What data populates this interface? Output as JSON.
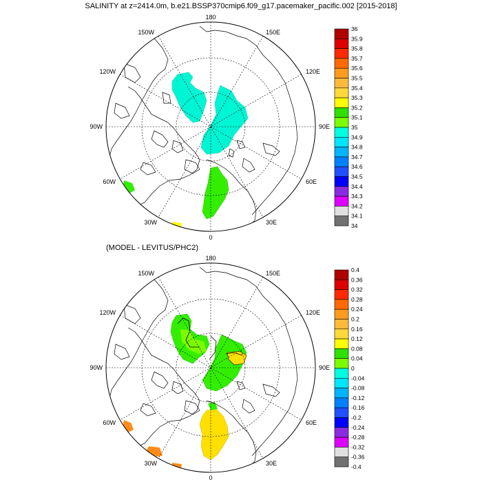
{
  "top_title": "SALINITY at z=2414.0m, b.e21.BSSP370cmip6.f09_g17.pacemaker_pacific.002 [2015-2018]",
  "bottom_title": "(MODEL - LEVITUS/PHC2)",
  "lon_labels": {
    "n180": "180",
    "n150w": "150W",
    "n150e": "150E",
    "n120w": "120W",
    "n120e": "120E",
    "n90w": "90W",
    "n90e": "90E",
    "n60w": "60W",
    "n60e": "60E",
    "n30w": "30W",
    "n30e": "30E",
    "n0": "0"
  },
  "top_colorbar": {
    "labels": [
      "36",
      "35.9",
      "35.8",
      "35.7",
      "35.6",
      "35.5",
      "35.4",
      "35.3",
      "35.2",
      "35.1",
      "35",
      "34.9",
      "34.8",
      "34.7",
      "34.6",
      "34.5",
      "34.4",
      "34.3",
      "34.2",
      "34.1",
      "34"
    ],
    "colors": [
      "#b00000",
      "#dd0000",
      "#ff2a00",
      "#ff6a00",
      "#ff9b1e",
      "#ffba3c",
      "#ffd83a",
      "#ffff00",
      "#2fe000",
      "#7cfc00",
      "#00ffe0",
      "#00e6ff",
      "#00b4ff",
      "#0080ff",
      "#2050ff",
      "#0000ff",
      "#8a2be2",
      "#dd00ff",
      "#e0e0e0",
      "#707070"
    ]
  },
  "bottom_colorbar": {
    "labels": [
      "0.4",
      "0.36",
      "0.32",
      "0.28",
      "0.24",
      "0.2",
      "0.16",
      "0.12",
      "0.08",
      "0.04",
      "0",
      "-0.04",
      "-0.08",
      "-0.12",
      "-0.16",
      "-0.2",
      "-0.24",
      "-0.28",
      "-0.32",
      "-0.36",
      "-0.4"
    ],
    "colors": [
      "#b00000",
      "#dd0000",
      "#ff2a00",
      "#ff6a00",
      "#ff9b1e",
      "#ffba3c",
      "#ffd83a",
      "#ffff00",
      "#2fe000",
      "#7cfc00",
      "#00ffe0",
      "#00e6ff",
      "#00b4ff",
      "#0080ff",
      "#2050ff",
      "#0000ff",
      "#8a2be2",
      "#dd00ff",
      "#e0e0e0",
      "#707070"
    ]
  },
  "colors": {
    "cyan_fill": "#00f5d4",
    "green_fill": "#33ee00",
    "lime_fill": "#7cfc00",
    "yellow_fill": "#ffe000",
    "orange_fill": "#ff8c1a"
  }
}
